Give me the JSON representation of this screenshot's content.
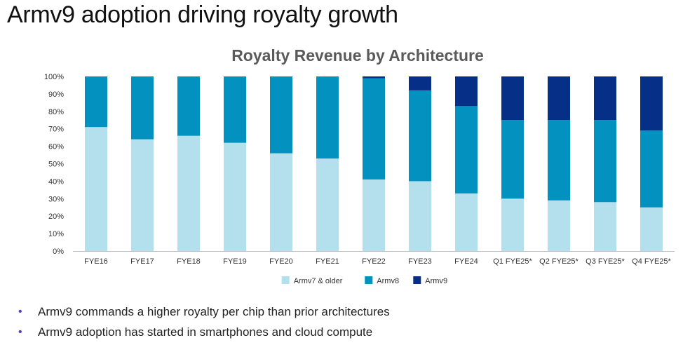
{
  "slide": {
    "title": "Armv9 adoption driving royalty growth"
  },
  "chart_data": {
    "type": "bar",
    "stacked": true,
    "title": "Royalty Revenue by Architecture",
    "xlabel": "",
    "ylabel": "",
    "ylim": [
      0,
      100
    ],
    "yticks": [
      "0%",
      "10%",
      "20%",
      "30%",
      "40%",
      "50%",
      "60%",
      "70%",
      "80%",
      "90%",
      "100%"
    ],
    "categories": [
      "FYE16",
      "FYE17",
      "FYE18",
      "FYE19",
      "FYE20",
      "FYE21",
      "FYE22",
      "FYE23",
      "FYE24",
      "Q1 FYE25*",
      "Q2 FYE25*",
      "Q3 FYE25*",
      "Q4 FYE25*"
    ],
    "series": [
      {
        "name": "Armv7 & older",
        "color": "#b4dfec",
        "values": [
          71,
          64,
          66,
          62,
          56,
          53,
          41,
          40,
          33,
          30,
          29,
          28,
          25
        ]
      },
      {
        "name": "Armv8",
        "color": "#0391bf",
        "values": [
          29,
          36,
          34,
          38,
          44,
          47,
          58,
          52,
          50,
          45,
          46,
          47,
          44
        ]
      },
      {
        "name": "Armv9",
        "color": "#062f87",
        "values": [
          0,
          0,
          0,
          0,
          0,
          0,
          1,
          8,
          17,
          25,
          25,
          25,
          31
        ]
      }
    ],
    "legend_position": "bottom-center",
    "grid": false
  },
  "bullets": [
    "Armv9 commands a higher royalty per chip than prior architectures",
    "Armv9 adoption has started in smartphones and cloud compute"
  ],
  "bullet_glyph": "•"
}
